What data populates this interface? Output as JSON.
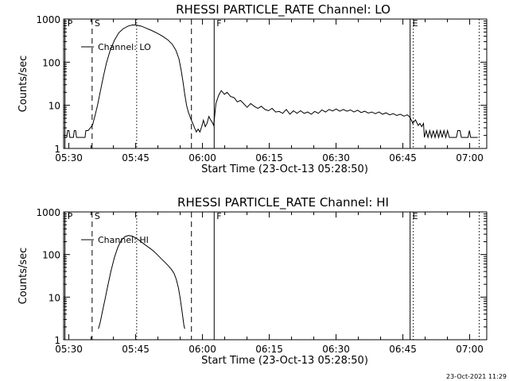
{
  "footer_timestamp": "23-Oct-2021 11:29",
  "chart_data": [
    {
      "type": "line",
      "title": "RHESSI PARTICLE_RATE Channel: LO",
      "xlabel": "Start Time (23-Oct-13 05:28:50)",
      "ylabel": "Counts/sec",
      "x_unit": "minutes after 05:28:50",
      "xlim": [
        0,
        95
      ],
      "ylim": [
        1,
        1000
      ],
      "yscale": "log",
      "grid": false,
      "legend": {
        "label": "Channel: LO",
        "position": "top-left"
      },
      "x_ticks": [
        {
          "t": 1.17,
          "label": "05:30"
        },
        {
          "t": 16.17,
          "label": "05:45"
        },
        {
          "t": 31.17,
          "label": "06:00"
        },
        {
          "t": 46.17,
          "label": "06:15"
        },
        {
          "t": 61.17,
          "label": "06:30"
        },
        {
          "t": 76.17,
          "label": "06:45"
        },
        {
          "t": 91.17,
          "label": "07:00"
        }
      ],
      "y_ticks": [
        {
          "v": 1,
          "label": "1"
        },
        {
          "v": 10,
          "label": "10"
        },
        {
          "v": 100,
          "label": "100"
        },
        {
          "v": 1000,
          "label": "1000"
        }
      ],
      "markers": [
        {
          "t": 0.3,
          "label": "P",
          "style": "solid"
        },
        {
          "t": 6.4,
          "label": "S",
          "style": "dashed"
        },
        {
          "t": 16.4,
          "style": "dotted"
        },
        {
          "t": 28.7,
          "style": "dashed"
        },
        {
          "t": 33.8,
          "label": "F",
          "style": "solid"
        },
        {
          "t": 77.8,
          "label": "E",
          "style": "solid"
        },
        {
          "t": 78.5,
          "style": "dotted"
        },
        {
          "t": 93.3,
          "style": "dotted"
        }
      ],
      "series": [
        {
          "name": "Channel: LO",
          "points": [
            [
              0,
              1.8
            ],
            [
              0.7,
              1.8
            ],
            [
              0.9,
              2.6
            ],
            [
              1.2,
              2.6
            ],
            [
              1.4,
              1.8
            ],
            [
              2.2,
              1.8
            ],
            [
              2.4,
              2.6
            ],
            [
              2.7,
              2.6
            ],
            [
              2.9,
              1.8
            ],
            [
              4.8,
              1.8
            ],
            [
              5.0,
              2.6
            ],
            [
              5.5,
              2.6
            ],
            [
              6.0,
              3.0
            ],
            [
              6.5,
              3.5
            ],
            [
              7.0,
              5.5
            ],
            [
              7.6,
              10
            ],
            [
              8.2,
              20
            ],
            [
              8.9,
              45
            ],
            [
              9.6,
              95
            ],
            [
              10.4,
              180
            ],
            [
              11.4,
              320
            ],
            [
              12.4,
              480
            ],
            [
              13.4,
              600
            ],
            [
              14.5,
              690
            ],
            [
              15.5,
              730
            ],
            [
              16.5,
              720
            ],
            [
              17.5,
              680
            ],
            [
              18.6,
              610
            ],
            [
              19.8,
              540
            ],
            [
              21.0,
              470
            ],
            [
              22.2,
              400
            ],
            [
              23.4,
              330
            ],
            [
              24.4,
              260
            ],
            [
              25.2,
              190
            ],
            [
              25.9,
              120
            ],
            [
              26.4,
              65
            ],
            [
              26.8,
              35
            ],
            [
              27.2,
              18
            ],
            [
              27.6,
              10
            ],
            [
              28.0,
              7
            ],
            [
              28.5,
              5
            ],
            [
              29.0,
              3.8
            ],
            [
              29.4,
              3.0
            ],
            [
              29.8,
              2.4
            ],
            [
              30.2,
              2.8
            ],
            [
              30.6,
              2.4
            ],
            [
              31.0,
              3.2
            ],
            [
              31.4,
              4.5
            ],
            [
              31.8,
              3.2
            ],
            [
              32.2,
              3.8
            ],
            [
              32.6,
              5.5
            ],
            [
              33.0,
              4.6
            ],
            [
              33.4,
              4.0
            ],
            [
              33.7,
              3.4
            ],
            [
              34.2,
              11
            ],
            [
              34.8,
              17
            ],
            [
              35.4,
              22
            ],
            [
              36.1,
              18
            ],
            [
              36.7,
              20
            ],
            [
              37.5,
              16
            ],
            [
              38.3,
              15
            ],
            [
              39.0,
              12
            ],
            [
              39.7,
              13
            ],
            [
              40.4,
              11
            ],
            [
              41.2,
              9
            ],
            [
              42.0,
              11
            ],
            [
              42.8,
              9.5
            ],
            [
              43.6,
              8.5
            ],
            [
              44.4,
              9.5
            ],
            [
              45.2,
              8
            ],
            [
              46.0,
              7.5
            ],
            [
              46.8,
              8.5
            ],
            [
              47.6,
              7
            ],
            [
              48.4,
              7.2
            ],
            [
              49.2,
              6.5
            ],
            [
              50.0,
              8
            ],
            [
              50.8,
              6.2
            ],
            [
              51.6,
              7.5
            ],
            [
              52.4,
              6.5
            ],
            [
              53.2,
              7.5
            ],
            [
              54.0,
              6.5
            ],
            [
              54.8,
              7
            ],
            [
              55.6,
              6.2
            ],
            [
              56.4,
              7.2
            ],
            [
              57.2,
              6.5
            ],
            [
              58.0,
              7.8
            ],
            [
              58.8,
              7
            ],
            [
              59.6,
              8
            ],
            [
              60.4,
              7.4
            ],
            [
              61.2,
              8.2
            ],
            [
              62.0,
              7.3
            ],
            [
              62.8,
              8
            ],
            [
              63.6,
              7.3
            ],
            [
              64.4,
              7.8
            ],
            [
              65.2,
              7.0
            ],
            [
              66.0,
              7.7
            ],
            [
              66.8,
              6.8
            ],
            [
              67.6,
              7.3
            ],
            [
              68.4,
              6.6
            ],
            [
              69.2,
              7.0
            ],
            [
              70.0,
              6.4
            ],
            [
              70.8,
              7.0
            ],
            [
              71.6,
              6.2
            ],
            [
              72.4,
              6.7
            ],
            [
              73.2,
              6.0
            ],
            [
              74.0,
              6.4
            ],
            [
              74.8,
              5.8
            ],
            [
              75.6,
              6.2
            ],
            [
              76.4,
              5.6
            ],
            [
              77.2,
              6.0
            ],
            [
              77.8,
              5.2
            ],
            [
              78.4,
              3.8
            ],
            [
              79.0,
              4.6
            ],
            [
              79.6,
              3.4
            ],
            [
              80.0,
              3.8
            ],
            [
              80.4,
              3.2
            ],
            [
              80.8,
              3.8
            ],
            [
              81.0,
              1.8
            ],
            [
              81.4,
              2.6
            ],
            [
              81.8,
              1.8
            ],
            [
              82.2,
              2.6
            ],
            [
              82.6,
              1.8
            ],
            [
              83.0,
              2.6
            ],
            [
              83.4,
              1.8
            ],
            [
              83.8,
              2.6
            ],
            [
              84.2,
              1.8
            ],
            [
              84.6,
              2.6
            ],
            [
              85.0,
              1.8
            ],
            [
              85.4,
              2.6
            ],
            [
              85.8,
              1.8
            ],
            [
              86.2,
              2.6
            ],
            [
              86.6,
              1.8
            ],
            [
              88.2,
              1.8
            ],
            [
              88.5,
              2.6
            ],
            [
              89.0,
              2.6
            ],
            [
              89.3,
              1.8
            ],
            [
              90.8,
              1.8
            ],
            [
              91.1,
              2.6
            ],
            [
              91.4,
              1.8
            ],
            [
              93.0,
              1.8
            ]
          ]
        }
      ]
    },
    {
      "type": "line",
      "title": "RHESSI PARTICLE_RATE Channel: HI",
      "xlabel": "Start Time (23-Oct-13 05:28:50)",
      "ylabel": "Counts/sec",
      "x_unit": "minutes after 05:28:50",
      "xlim": [
        0,
        95
      ],
      "ylim": [
        1,
        1000
      ],
      "yscale": "log",
      "grid": false,
      "legend": {
        "label": "Channel: HI",
        "position": "top-left"
      },
      "x_ticks": [
        {
          "t": 1.17,
          "label": "05:30"
        },
        {
          "t": 16.17,
          "label": "05:45"
        },
        {
          "t": 31.17,
          "label": "06:00"
        },
        {
          "t": 46.17,
          "label": "06:15"
        },
        {
          "t": 61.17,
          "label": "06:30"
        },
        {
          "t": 76.17,
          "label": "06:45"
        },
        {
          "t": 91.17,
          "label": "07:00"
        }
      ],
      "y_ticks": [
        {
          "v": 1,
          "label": "1"
        },
        {
          "v": 10,
          "label": "10"
        },
        {
          "v": 100,
          "label": "100"
        },
        {
          "v": 1000,
          "label": "1000"
        }
      ],
      "markers": [
        {
          "t": 0.3,
          "label": "P",
          "style": "solid"
        },
        {
          "t": 6.4,
          "label": "S",
          "style": "dashed"
        },
        {
          "t": 16.4,
          "style": "dotted"
        },
        {
          "t": 28.7,
          "style": "dashed"
        },
        {
          "t": 33.8,
          "label": "F",
          "style": "solid"
        },
        {
          "t": 77.8,
          "label": "E",
          "style": "solid"
        },
        {
          "t": 78.5,
          "style": "dotted"
        },
        {
          "t": 93.3,
          "style": "dotted"
        }
      ],
      "series": [
        {
          "name": "Channel: HI",
          "points": [
            [
              7.8,
              1.8
            ],
            [
              8.2,
              2.5
            ],
            [
              8.7,
              4.5
            ],
            [
              9.3,
              9
            ],
            [
              9.9,
              18
            ],
            [
              10.6,
              40
            ],
            [
              11.4,
              85
            ],
            [
              12.2,
              150
            ],
            [
              13.0,
              220
            ],
            [
              13.8,
              265
            ],
            [
              14.6,
              280
            ],
            [
              15.4,
              270
            ],
            [
              16.2,
              245
            ],
            [
              17.0,
              215
            ],
            [
              17.8,
              185
            ],
            [
              18.6,
              160
            ],
            [
              19.4,
              140
            ],
            [
              20.2,
              120
            ],
            [
              21.0,
              100
            ],
            [
              21.8,
              82
            ],
            [
              22.6,
              68
            ],
            [
              23.4,
              56
            ],
            [
              24.2,
              45
            ],
            [
              24.8,
              36
            ],
            [
              25.3,
              26
            ],
            [
              25.8,
              16
            ],
            [
              26.2,
              9
            ],
            [
              26.6,
              4.5
            ],
            [
              27.0,
              2.2
            ],
            [
              27.2,
              1.8
            ]
          ]
        }
      ]
    }
  ]
}
